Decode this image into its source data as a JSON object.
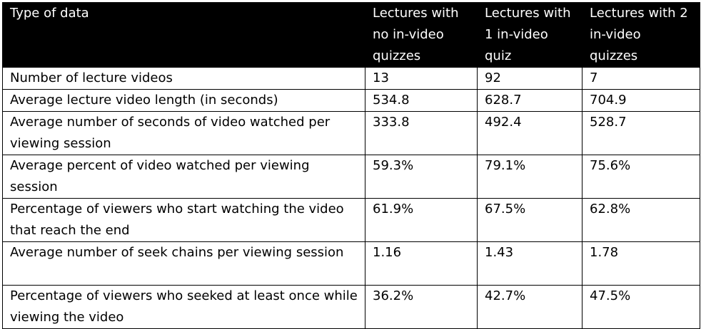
{
  "colors": {
    "header_bg": "#000000",
    "header_text": "#ffffff",
    "border": "#000000",
    "body_bg": "#ffffff"
  },
  "chart_data": {
    "type": "table",
    "columns": [
      "Type of data",
      "Lectures with no in-video quizzes",
      "Lectures with 1 in-video quiz",
      "Lectures with 2 in-video quizzes"
    ],
    "rows": [
      [
        "Number of lecture videos",
        "13",
        "92",
        "7"
      ],
      [
        "Average lecture video length (in seconds)",
        "534.8",
        "628.7",
        "704.9"
      ],
      [
        "Average number of seconds of video watched per viewing session",
        "333.8",
        "492.4",
        "528.7"
      ],
      [
        "Average percent of video watched per viewing session",
        "59.3%",
        "79.1%",
        "75.6%"
      ],
      [
        "Percentage of viewers who start watching the video that reach the end",
        "61.9%",
        "67.5%",
        "62.8%"
      ],
      [
        "Average number of seek chains per viewing session",
        "1.16",
        "1.43",
        "1.78"
      ],
      [
        "Percentage of viewers who seeked at least once while viewing the video",
        "36.2%",
        "42.7%",
        "47.5%"
      ]
    ]
  }
}
